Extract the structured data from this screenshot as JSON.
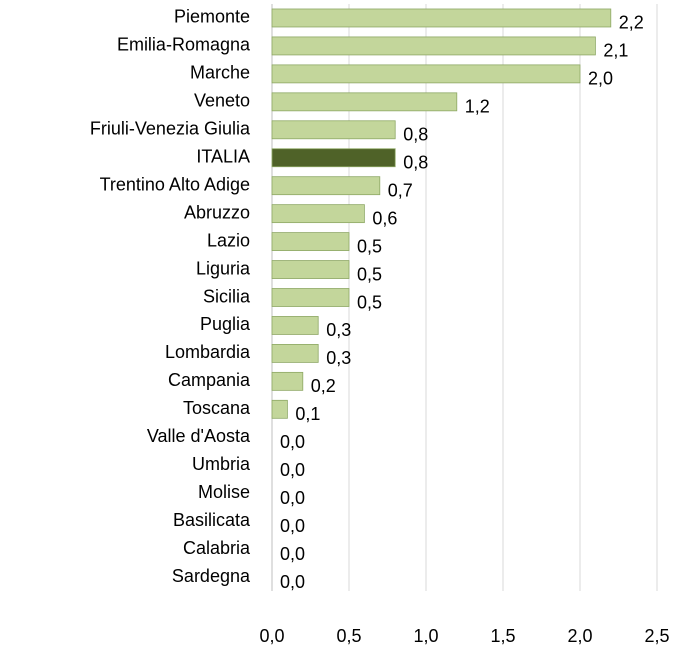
{
  "chart_data": {
    "type": "bar",
    "orientation": "horizontal",
    "categories": [
      "Piemonte",
      "Emilia-Romagna",
      "Marche",
      "Veneto",
      "Friuli-Venezia Giulia",
      "ITALIA",
      "Trentino Alto Adige",
      "Abruzzo",
      "Lazio",
      "Liguria",
      "Sicilia",
      "Puglia",
      "Lombardia",
      "Campania",
      "Toscana",
      "Valle d'Aosta",
      "Umbria",
      "Molise",
      "Basilicata",
      "Calabria",
      "Sardegna"
    ],
    "values": [
      2.2,
      2.1,
      2.0,
      1.2,
      0.8,
      0.8,
      0.7,
      0.6,
      0.5,
      0.5,
      0.5,
      0.3,
      0.3,
      0.2,
      0.1,
      0,
      0,
      0,
      0,
      0,
      0
    ],
    "value_labels": [
      "2,2",
      "2,1",
      "2,0",
      "1,2",
      "0,8",
      "0,8",
      "0,7",
      "0,6",
      "0,5",
      "0,5",
      "0,5",
      "0,3",
      "0,3",
      "0,2",
      "0,1",
      "0,0",
      "0,0",
      "0,0",
      "0,0",
      "0,0",
      "0,0"
    ],
    "colors": [
      "#c3d69b",
      "#c3d69b",
      "#c3d69b",
      "#c3d69b",
      "#c3d69b",
      "#4f6228",
      "#c3d69b",
      "#c3d69b",
      "#c3d69b",
      "#c3d69b",
      "#c3d69b",
      "#c3d69b",
      "#c3d69b",
      "#c3d69b",
      "#c3d69b",
      "#c3d69b",
      "#c3d69b",
      "#c3d69b",
      "#c3d69b",
      "#c3d69b",
      "#c3d69b"
    ],
    "xlim": [
      0,
      2.5
    ],
    "xticks": [
      {
        "value": 0,
        "label": "0,0"
      },
      {
        "value": 0.5,
        "label": "0,5"
      },
      {
        "value": 1,
        "label": "1,0"
      },
      {
        "value": 1.5,
        "label": "1,5"
      },
      {
        "value": 2,
        "label": "2,0"
      },
      {
        "value": 2.5,
        "label": "2,5"
      }
    ],
    "grid": true
  }
}
